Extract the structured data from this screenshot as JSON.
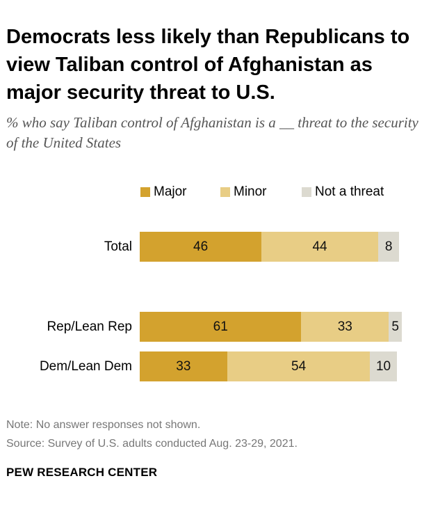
{
  "title": "Democrats less likely than Republicans to view Taliban control of Afghanistan as major security threat to U.S.",
  "subtitle": "% who say Taliban control of Afghanistan is a __ threat to the security of the United States",
  "note": "Note: No answer responses not shown.",
  "source": "Source: Survey of U.S. adults conducted Aug. 23-29, 2021.",
  "brand": "PEW RESEARCH CENTER",
  "colors": {
    "major": "#D3A22E",
    "minor": "#E8CD85",
    "not_a_threat": "#DCDAD0"
  },
  "chart_data": {
    "type": "bar",
    "orientation": "horizontal",
    "stacked": true,
    "categories": [
      "Total",
      "Rep/Lean Rep",
      "Dem/Lean Dem"
    ],
    "series": [
      {
        "name": "Major",
        "values": [
          46,
          61,
          33
        ]
      },
      {
        "name": "Minor",
        "values": [
          44,
          33,
          54
        ]
      },
      {
        "name": "Not a threat",
        "values": [
          8,
          5,
          10
        ]
      }
    ],
    "xlim": [
      0,
      100
    ],
    "legend": "top"
  }
}
